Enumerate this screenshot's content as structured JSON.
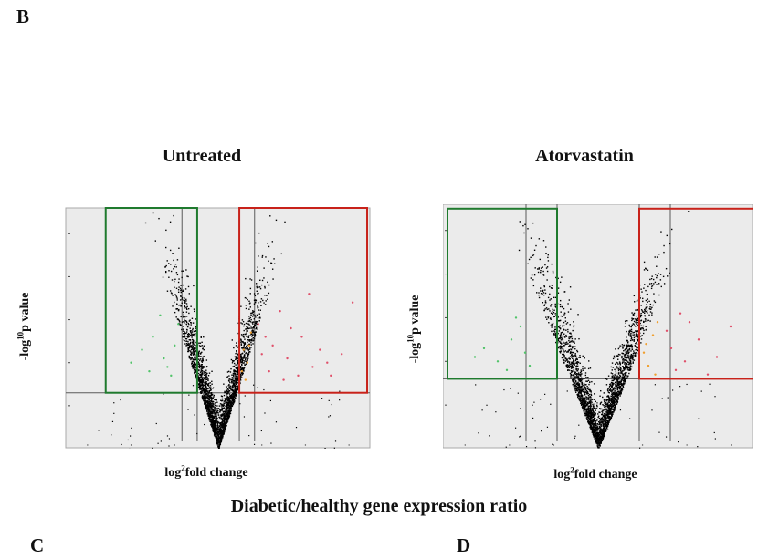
{
  "figure": {
    "panel_b": "B",
    "panel_c": "C",
    "panel_d": "D",
    "caption": "Diabetic/healthy gene expression ratio"
  },
  "colors": {
    "plot_bg": "#ebebeb",
    "plot_border": "#a8a8a8",
    "grid_line": "#5a5a5a",
    "down_box": "#1f7a2e",
    "up_box": "#c8221a",
    "down_points": "#52c46a",
    "up_points_near": "#f0a030",
    "up_points_far": "#e0506a",
    "background_points": "#000000"
  },
  "chart_data": [
    {
      "type": "scatter",
      "title": "Untreated",
      "xlabel_base": "log",
      "xlabel_sup": "2",
      "xlabel_rest": "fold change",
      "ylabel_base": "-log",
      "ylabel_sup": "10",
      "ylabel_rest": "p value",
      "xlim": [
        -4.2,
        4.2
      ],
      "ylim": [
        0,
        5.6
      ],
      "fold_thresholds": [
        -1.0,
        -0.58,
        0.58,
        1.0
      ],
      "pvalue_threshold": 1.3,
      "down_box": {
        "x": [
          -3.1,
          -0.58
        ],
        "y": [
          1.3,
          5.6
        ]
      },
      "up_box": {
        "x": [
          0.58,
          4.1
        ],
        "y": [
          1.3,
          5.6
        ]
      },
      "highlight_up_points": [
        [
          1.2,
          2.2
        ],
        [
          1.5,
          2.4
        ],
        [
          1.9,
          2.1
        ],
        [
          2.3,
          2.6
        ],
        [
          2.6,
          1.9
        ],
        [
          3.0,
          2.0
        ],
        [
          1.1,
          2.9
        ],
        [
          1.4,
          1.8
        ],
        [
          2.0,
          2.8
        ],
        [
          2.8,
          2.3
        ],
        [
          3.4,
          2.2
        ],
        [
          1.7,
          3.2
        ],
        [
          2.2,
          1.7
        ],
        [
          1.3,
          2.6
        ],
        [
          3.7,
          3.4
        ],
        [
          2.5,
          3.6
        ],
        [
          1.8,
          1.6
        ],
        [
          3.1,
          1.7
        ]
      ],
      "highlight_down_points": [
        [
          -1.2,
          2.4
        ],
        [
          -1.5,
          2.1
        ],
        [
          -1.8,
          2.6
        ],
        [
          -1.1,
          2.9
        ],
        [
          -1.4,
          1.9
        ],
        [
          -2.1,
          2.3
        ],
        [
          -1.6,
          3.1
        ],
        [
          -1.3,
          1.7
        ],
        [
          -1.9,
          1.8
        ],
        [
          -2.4,
          2.0
        ]
      ],
      "highlight_mid_up": [
        [
          0.7,
          2.3
        ],
        [
          0.8,
          2.0
        ],
        [
          0.9,
          2.7
        ],
        [
          0.65,
          1.8
        ],
        [
          0.85,
          2.4
        ],
        [
          0.75,
          1.6
        ]
      ]
    },
    {
      "type": "scatter",
      "title": "Atorvastatin",
      "xlabel_base": "log",
      "xlabel_sup": "2",
      "xlabel_rest": "fold change",
      "ylabel_base": "-log",
      "ylabel_sup": "10",
      "ylabel_rest": "p value",
      "xlim": [
        -3.4,
        3.4
      ],
      "ylim": [
        0,
        5.6
      ],
      "fold_thresholds": [
        -1.58,
        -0.9,
        0.9,
        1.58
      ],
      "pvalue_threshold": 1.6,
      "down_box": {
        "x": [
          -3.3,
          -0.9
        ],
        "y": [
          1.6,
          5.5
        ]
      },
      "up_box": {
        "x": [
          0.9,
          3.4
        ],
        "y": [
          1.6,
          5.5
        ]
      },
      "highlight_up_points": [
        [
          1.6,
          2.3
        ],
        [
          1.9,
          2.0
        ],
        [
          2.2,
          2.5
        ],
        [
          1.7,
          1.8
        ],
        [
          2.6,
          2.1
        ],
        [
          2.9,
          2.8
        ],
        [
          1.5,
          2.7
        ],
        [
          2.0,
          2.9
        ],
        [
          2.4,
          1.7
        ],
        [
          1.8,
          3.1
        ]
      ],
      "highlight_down_points": [
        [
          -1.6,
          2.2
        ],
        [
          -1.9,
          2.5
        ],
        [
          -2.2,
          2.0
        ],
        [
          -1.7,
          2.8
        ],
        [
          -2.5,
          2.3
        ],
        [
          -1.5,
          1.9
        ],
        [
          -2.0,
          1.8
        ],
        [
          -2.7,
          2.1
        ],
        [
          -1.8,
          3.0
        ]
      ],
      "highlight_mid_up": [
        [
          1.0,
          2.2
        ],
        [
          1.2,
          2.6
        ],
        [
          1.1,
          1.9
        ],
        [
          1.3,
          2.9
        ],
        [
          1.05,
          2.4
        ],
        [
          1.25,
          1.7
        ]
      ]
    }
  ]
}
